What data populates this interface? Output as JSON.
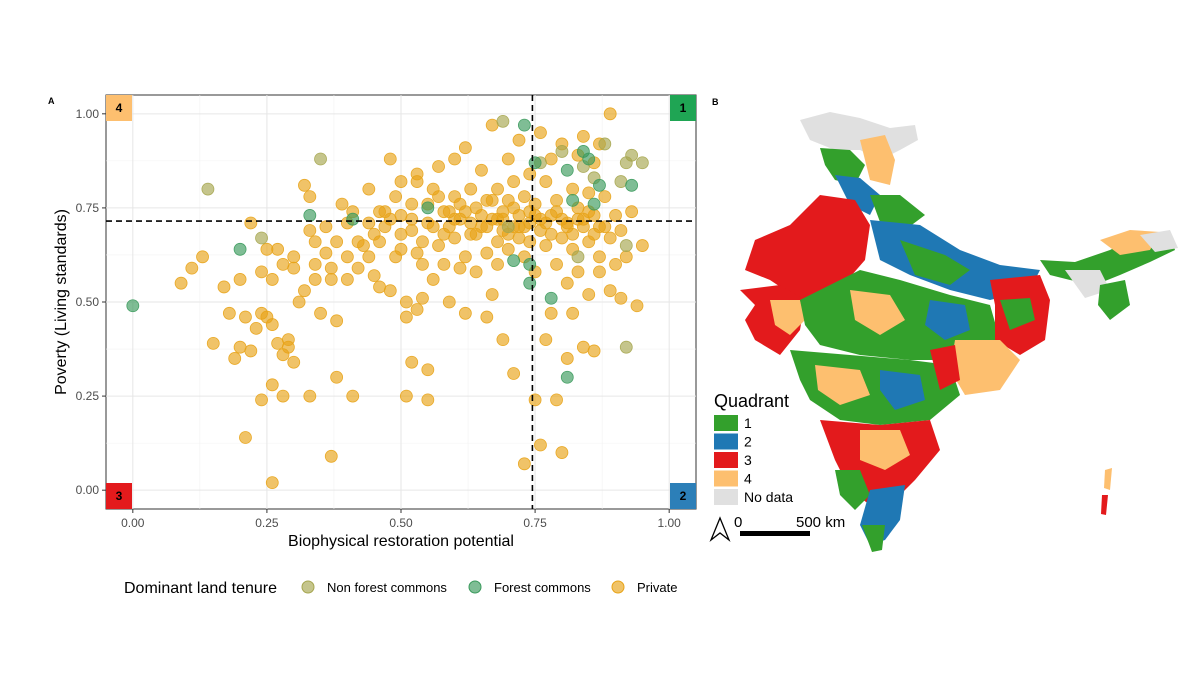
{
  "panel_a_label": "A",
  "panel_b_label": "B",
  "chart_data": {
    "type": "scatter",
    "title": "",
    "xlabel": "Biophysical restoration potential",
    "ylabel": "Poverty (Living standards)",
    "xlim": [
      -0.05,
      1.05
    ],
    "ylim": [
      -0.05,
      1.05
    ],
    "x_ticks": [
      "0.00",
      "0.25",
      "0.50",
      "0.75",
      "1.00"
    ],
    "y_ticks": [
      "0.00",
      "0.25",
      "0.50",
      "0.75",
      "1.00"
    ],
    "x_tick_values": [
      0,
      0.25,
      0.5,
      0.75,
      1.0
    ],
    "y_tick_values": [
      0,
      0.25,
      0.5,
      0.75,
      1.0
    ],
    "grid": true,
    "reference_lines": {
      "x": 0.745,
      "y": 0.715
    },
    "quadrant_labels": [
      {
        "label": "4",
        "color": "#fdbf6f",
        "corner": "top-left"
      },
      {
        "label": "1",
        "color": "#1fa554",
        "corner": "top-right"
      },
      {
        "label": "3",
        "color": "#e31a1c",
        "corner": "bottom-left"
      },
      {
        "label": "2",
        "color": "#2c7fb8",
        "corner": "bottom-right"
      }
    ],
    "legend": {
      "title": "Dominant land tenure",
      "placement": "bottom",
      "items": [
        {
          "label": "Non forest commons",
          "color": "#a6a64f"
        },
        {
          "label": "Forest commons",
          "color": "#3a9a5c"
        },
        {
          "label": "Private",
          "color": "#e8a317"
        }
      ]
    },
    "series": [
      {
        "name": "Non forest commons",
        "color": "#a6a64f",
        "points": [
          [
            0.14,
            0.8
          ],
          [
            0.24,
            0.67
          ],
          [
            0.35,
            0.88
          ],
          [
            0.69,
            0.98
          ],
          [
            0.8,
            0.9
          ],
          [
            0.88,
            0.92
          ],
          [
            0.92,
            0.87
          ],
          [
            0.93,
            0.89
          ],
          [
            0.95,
            0.87
          ],
          [
            0.91,
            0.82
          ],
          [
            0.92,
            0.65
          ],
          [
            0.92,
            0.38
          ],
          [
            0.84,
            0.86
          ],
          [
            0.86,
            0.83
          ],
          [
            0.76,
            0.87
          ],
          [
            0.7,
            0.7
          ],
          [
            0.83,
            0.62
          ]
        ]
      },
      {
        "name": "Forest commons",
        "color": "#3a9a5c",
        "points": [
          [
            0.0,
            0.49
          ],
          [
            0.2,
            0.64
          ],
          [
            0.33,
            0.73
          ],
          [
            0.41,
            0.72
          ],
          [
            0.55,
            0.75
          ],
          [
            0.73,
            0.97
          ],
          [
            0.74,
            0.55
          ],
          [
            0.75,
            0.87
          ],
          [
            0.78,
            0.51
          ],
          [
            0.81,
            0.3
          ],
          [
            0.81,
            0.85
          ],
          [
            0.84,
            0.9
          ],
          [
            0.85,
            0.88
          ],
          [
            0.87,
            0.81
          ],
          [
            0.86,
            0.76
          ],
          [
            0.93,
            0.81
          ],
          [
            0.82,
            0.77
          ],
          [
            0.74,
            0.6
          ],
          [
            0.71,
            0.61
          ]
        ]
      },
      {
        "name": "Private",
        "color": "#e8a317",
        "points": [
          [
            0.09,
            0.55
          ],
          [
            0.11,
            0.59
          ],
          [
            0.13,
            0.62
          ],
          [
            0.15,
            0.39
          ],
          [
            0.17,
            0.54
          ],
          [
            0.18,
            0.47
          ],
          [
            0.19,
            0.35
          ],
          [
            0.2,
            0.38
          ],
          [
            0.2,
            0.56
          ],
          [
            0.21,
            0.46
          ],
          [
            0.21,
            0.14
          ],
          [
            0.22,
            0.37
          ],
          [
            0.22,
            0.71
          ],
          [
            0.23,
            0.43
          ],
          [
            0.24,
            0.24
          ],
          [
            0.24,
            0.47
          ],
          [
            0.25,
            0.46
          ],
          [
            0.25,
            0.64
          ],
          [
            0.26,
            0.28
          ],
          [
            0.26,
            0.02
          ],
          [
            0.26,
            0.44
          ],
          [
            0.27,
            0.64
          ],
          [
            0.27,
            0.39
          ],
          [
            0.28,
            0.25
          ],
          [
            0.28,
            0.36
          ],
          [
            0.29,
            0.4
          ],
          [
            0.29,
            0.38
          ],
          [
            0.3,
            0.59
          ],
          [
            0.3,
            0.34
          ],
          [
            0.31,
            0.5
          ],
          [
            0.32,
            0.53
          ],
          [
            0.32,
            0.81
          ],
          [
            0.33,
            0.78
          ],
          [
            0.33,
            0.25
          ],
          [
            0.33,
            0.69
          ],
          [
            0.34,
            0.6
          ],
          [
            0.34,
            0.56
          ],
          [
            0.35,
            0.47
          ],
          [
            0.36,
            0.63
          ],
          [
            0.37,
            0.09
          ],
          [
            0.37,
            0.59
          ],
          [
            0.37,
            0.56
          ],
          [
            0.38,
            0.45
          ],
          [
            0.38,
            0.3
          ],
          [
            0.39,
            0.76
          ],
          [
            0.4,
            0.56
          ],
          [
            0.4,
            0.71
          ],
          [
            0.41,
            0.25
          ],
          [
            0.41,
            0.74
          ],
          [
            0.42,
            0.59
          ],
          [
            0.43,
            0.65
          ],
          [
            0.44,
            0.71
          ],
          [
            0.44,
            0.8
          ],
          [
            0.45,
            0.68
          ],
          [
            0.45,
            0.57
          ],
          [
            0.46,
            0.66
          ],
          [
            0.46,
            0.54
          ],
          [
            0.47,
            0.7
          ],
          [
            0.47,
            0.74
          ],
          [
            0.48,
            0.53
          ],
          [
            0.48,
            0.88
          ],
          [
            0.49,
            0.62
          ],
          [
            0.49,
            0.78
          ],
          [
            0.5,
            0.64
          ],
          [
            0.5,
            0.73
          ],
          [
            0.5,
            0.82
          ],
          [
            0.51,
            0.25
          ],
          [
            0.51,
            0.46
          ],
          [
            0.51,
            0.5
          ],
          [
            0.52,
            0.34
          ],
          [
            0.52,
            0.69
          ],
          [
            0.52,
            0.76
          ],
          [
            0.53,
            0.48
          ],
          [
            0.53,
            0.84
          ],
          [
            0.53,
            0.63
          ],
          [
            0.54,
            0.51
          ],
          [
            0.54,
            0.6
          ],
          [
            0.55,
            0.24
          ],
          [
            0.55,
            0.32
          ],
          [
            0.55,
            0.71
          ],
          [
            0.56,
            0.56
          ],
          [
            0.56,
            0.8
          ],
          [
            0.57,
            0.65
          ],
          [
            0.57,
            0.86
          ],
          [
            0.58,
            0.74
          ],
          [
            0.58,
            0.6
          ],
          [
            0.59,
            0.5
          ],
          [
            0.59,
            0.7
          ],
          [
            0.6,
            0.78
          ],
          [
            0.6,
            0.67
          ],
          [
            0.6,
            0.88
          ],
          [
            0.61,
            0.59
          ],
          [
            0.61,
            0.72
          ],
          [
            0.62,
            0.47
          ],
          [
            0.62,
            0.62
          ],
          [
            0.62,
            0.91
          ],
          [
            0.63,
            0.8
          ],
          [
            0.63,
            0.68
          ],
          [
            0.64,
            0.75
          ],
          [
            0.64,
            0.58
          ],
          [
            0.65,
            0.7
          ],
          [
            0.65,
            0.85
          ],
          [
            0.66,
            0.63
          ],
          [
            0.66,
            0.46
          ],
          [
            0.66,
            0.77
          ],
          [
            0.67,
            0.72
          ],
          [
            0.67,
            0.52
          ],
          [
            0.67,
            0.97
          ],
          [
            0.68,
            0.66
          ],
          [
            0.68,
            0.8
          ],
          [
            0.68,
            0.6
          ],
          [
            0.69,
            0.74
          ],
          [
            0.69,
            0.69
          ],
          [
            0.69,
            0.4
          ],
          [
            0.7,
            0.88
          ],
          [
            0.7,
            0.64
          ],
          [
            0.7,
            0.77
          ],
          [
            0.71,
            0.7
          ],
          [
            0.71,
            0.31
          ],
          [
            0.71,
            0.82
          ],
          [
            0.72,
            0.67
          ],
          [
            0.72,
            0.73
          ],
          [
            0.72,
            0.93
          ],
          [
            0.73,
            0.62
          ],
          [
            0.73,
            0.78
          ],
          [
            0.73,
            0.07
          ],
          [
            0.74,
            0.71
          ],
          [
            0.74,
            0.84
          ],
          [
            0.74,
            0.66
          ],
          [
            0.75,
            0.24
          ],
          [
            0.75,
            0.76
          ],
          [
            0.75,
            0.58
          ],
          [
            0.76,
            0.12
          ],
          [
            0.76,
            0.69
          ],
          [
            0.76,
            0.95
          ],
          [
            0.77,
            0.65
          ],
          [
            0.77,
            0.82
          ],
          [
            0.77,
            0.4
          ],
          [
            0.78,
            0.73
          ],
          [
            0.78,
            0.88
          ],
          [
            0.78,
            0.47
          ],
          [
            0.79,
            0.6
          ],
          [
            0.79,
            0.24
          ],
          [
            0.79,
            0.77
          ],
          [
            0.8,
            0.67
          ],
          [
            0.8,
            0.1
          ],
          [
            0.8,
            0.92
          ],
          [
            0.81,
            0.55
          ],
          [
            0.81,
            0.71
          ],
          [
            0.81,
            0.35
          ],
          [
            0.82,
            0.8
          ],
          [
            0.82,
            0.64
          ],
          [
            0.82,
            0.47
          ],
          [
            0.83,
            0.75
          ],
          [
            0.83,
            0.89
          ],
          [
            0.83,
            0.58
          ],
          [
            0.84,
            0.7
          ],
          [
            0.84,
            0.38
          ],
          [
            0.84,
            0.94
          ],
          [
            0.85,
            0.66
          ],
          [
            0.85,
            0.79
          ],
          [
            0.85,
            0.52
          ],
          [
            0.86,
            0.73
          ],
          [
            0.86,
            0.87
          ],
          [
            0.86,
            0.37
          ],
          [
            0.87,
            0.62
          ],
          [
            0.87,
            0.92
          ],
          [
            0.87,
            0.58
          ],
          [
            0.88,
            0.7
          ],
          [
            0.88,
            0.78
          ],
          [
            0.89,
            0.53
          ],
          [
            0.89,
            0.67
          ],
          [
            0.9,
            0.6
          ],
          [
            0.9,
            0.73
          ],
          [
            0.91,
            0.51
          ],
          [
            0.91,
            0.69
          ],
          [
            0.92,
            0.62
          ],
          [
            0.93,
            0.74
          ],
          [
            0.94,
            0.49
          ],
          [
            0.95,
            0.65
          ],
          [
            0.89,
            1.0
          ],
          [
            0.53,
            0.82
          ],
          [
            0.55,
            0.76
          ],
          [
            0.57,
            0.78
          ],
          [
            0.59,
            0.74
          ],
          [
            0.61,
            0.76
          ],
          [
            0.63,
            0.71
          ],
          [
            0.65,
            0.73
          ],
          [
            0.67,
            0.77
          ],
          [
            0.69,
            0.72
          ],
          [
            0.71,
            0.75
          ],
          [
            0.73,
            0.7
          ],
          [
            0.75,
            0.73
          ],
          [
            0.77,
            0.71
          ],
          [
            0.79,
            0.74
          ],
          [
            0.81,
            0.7
          ],
          [
            0.83,
            0.72
          ],
          [
            0.85,
            0.74
          ],
          [
            0.87,
            0.7
          ],
          [
            0.64,
            0.68
          ],
          [
            0.66,
            0.7
          ],
          [
            0.68,
            0.72
          ],
          [
            0.7,
            0.68
          ],
          [
            0.72,
            0.7
          ],
          [
            0.74,
            0.74
          ],
          [
            0.76,
            0.72
          ],
          [
            0.78,
            0.68
          ],
          [
            0.8,
            0.72
          ],
          [
            0.82,
            0.68
          ],
          [
            0.84,
            0.72
          ],
          [
            0.86,
            0.68
          ],
          [
            0.62,
            0.74
          ],
          [
            0.6,
            0.72
          ],
          [
            0.58,
            0.68
          ],
          [
            0.56,
            0.7
          ],
          [
            0.54,
            0.66
          ],
          [
            0.52,
            0.72
          ],
          [
            0.5,
            0.68
          ],
          [
            0.48,
            0.72
          ],
          [
            0.46,
            0.74
          ],
          [
            0.44,
            0.62
          ],
          [
            0.42,
            0.66
          ],
          [
            0.4,
            0.62
          ],
          [
            0.38,
            0.66
          ],
          [
            0.36,
            0.7
          ],
          [
            0.34,
            0.66
          ],
          [
            0.3,
            0.62
          ],
          [
            0.28,
            0.6
          ],
          [
            0.26,
            0.56
          ],
          [
            0.24,
            0.58
          ]
        ]
      }
    ]
  },
  "map": {
    "legend_title": "Quadrant",
    "legend_items": [
      {
        "label": "1",
        "color": "#33a02c"
      },
      {
        "label": "2",
        "color": "#1f78b4"
      },
      {
        "label": "3",
        "color": "#e31a1c"
      },
      {
        "label": "4",
        "color": "#fdbf6f"
      },
      {
        "label": "No data",
        "color": "#e0e0e0"
      }
    ],
    "scale_start": "0",
    "scale_end": "500 km"
  }
}
